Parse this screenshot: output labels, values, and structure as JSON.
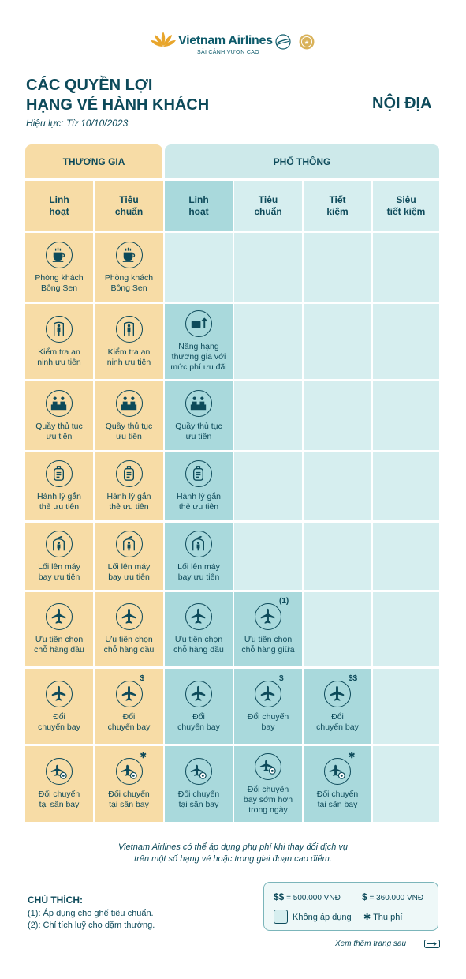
{
  "header": {
    "brand": "Vietnam Airlines",
    "slogan": "SẢI CÁNH VƯƠN CAO",
    "title_line1": "CÁC QUYỀN LỢI",
    "title_line2": "HẠNG VÉ HÀNH KHÁCH",
    "region": "NỘI ĐỊA",
    "validity": "Hiệu lực: Từ 10/10/2023"
  },
  "classes": {
    "business": "THƯƠNG GIA",
    "economy": "PHỔ THÔNG"
  },
  "fares": [
    {
      "line1": "Linh",
      "line2": "hoạt"
    },
    {
      "line1": "Tiêu",
      "line2": "chuẩn"
    },
    {
      "line1": "Linh",
      "line2": "hoạt"
    },
    {
      "line1": "Tiêu",
      "line2": "chuẩn"
    },
    {
      "line1": "Tiết",
      "line2": "kiệm"
    },
    {
      "line1": "Siêu",
      "line2": "tiết kiệm"
    }
  ],
  "rows": [
    {
      "icon": "coffee-cup-icon",
      "cells": [
        {
          "l1": "Phòng khách",
          "l2": "Bông Sen"
        },
        {
          "l1": "Phòng khách",
          "l2": "Bông Sen"
        },
        null,
        null,
        null,
        null
      ]
    },
    {
      "icon": "security-gate-icon",
      "cells": [
        {
          "l1": "Kiểm tra an",
          "l2": "ninh ưu tiên"
        },
        {
          "l1": "Kiểm tra an",
          "l2": "ninh ưu tiên"
        },
        {
          "l1": "Nâng hạng",
          "l2": "thương gia với",
          "l3": "mức phí ưu đãi",
          "icon": "upgrade-icon"
        },
        null,
        null,
        null
      ]
    },
    {
      "icon": "check-in-counter-icon",
      "cells": [
        {
          "l1": "Quầy thủ tục",
          "l2": "ưu tiên"
        },
        {
          "l1": "Quầy thủ tục",
          "l2": "ưu tiên"
        },
        {
          "l1": "Quầy thủ tục",
          "l2": "ưu tiên"
        },
        null,
        null,
        null
      ]
    },
    {
      "icon": "baggage-tag-icon",
      "cells": [
        {
          "l1": "Hành lý gắn",
          "l2": "thẻ ưu tiên"
        },
        {
          "l1": "Hành lý gắn",
          "l2": "thẻ ưu tiên"
        },
        {
          "l1": "Hành lý gắn",
          "l2": "thẻ ưu tiên"
        },
        null,
        null,
        null
      ]
    },
    {
      "icon": "boarding-gate-icon",
      "cells": [
        {
          "l1": "Lối lên máy",
          "l2": "bay ưu tiên"
        },
        {
          "l1": "Lối lên máy",
          "l2": "bay ưu tiên"
        },
        {
          "l1": "Lối lên máy",
          "l2": "bay ưu tiên"
        },
        null,
        null,
        null
      ]
    },
    {
      "icon": "plane-seat-icon",
      "cells": [
        {
          "l1": "Ưu tiên chọn",
          "l2": "chỗ hàng đầu"
        },
        {
          "l1": "Ưu tiên chọn",
          "l2": "chỗ hàng đầu"
        },
        {
          "l1": "Ưu tiên chọn",
          "l2": "chỗ hàng đầu"
        },
        {
          "l1": "Ưu tiên chọn",
          "l2": "chỗ hàng giữa",
          "sup": "(1)"
        },
        null,
        null
      ]
    },
    {
      "icon": "change-flight-icon",
      "cells": [
        {
          "l1": "Đổi",
          "l2": "chuyến bay"
        },
        {
          "l1": "Đổi",
          "l2": "chuyến bay",
          "sup": "$"
        },
        {
          "l1": "Đổi",
          "l2": "chuyến bay"
        },
        {
          "l1": "Đổi chuyến",
          "l2": "bay",
          "sup": "$"
        },
        {
          "l1": "Đổi",
          "l2": "chuyến bay",
          "sup": "$$"
        },
        null
      ]
    },
    {
      "icon": "airport-change-icon",
      "cells": [
        {
          "l1": "Đổi chuyến",
          "l2": "tại sân bay"
        },
        {
          "l1": "Đổi chuyến",
          "l2": "tại sân bay",
          "sup": "✱"
        },
        {
          "l1": "Đổi chuyến",
          "l2": "tại sân bay"
        },
        {
          "l1": "Đổi chuyến",
          "l2": "bay sớm hơn",
          "l3": "trong ngày"
        },
        {
          "l1": "Đổi chuyến",
          "l2": "tại sân bay",
          "sup": "✱"
        },
        null
      ]
    }
  ],
  "note": {
    "line1": "Vietnam Airlines có thể áp dụng phụ phí khi thay đổi dịch vụ",
    "line2": "trên một số hạng vé hoặc trong giai đoạn cao điểm."
  },
  "legend": {
    "title": "CHÚ THÍCH:",
    "item1": "(1): Áp dụng cho ghế tiêu chuẩn.",
    "item2": "(2): Chỉ tích luỹ cho dặm thưởng."
  },
  "key": {
    "dd_symbol": "$$",
    "dd_value": "= 500.000 VNĐ",
    "d_symbol": "$",
    "d_value": "= 360.000 VNĐ",
    "not_applicable": "Không áp dụng",
    "fee_symbol": "✱",
    "fee_label": "Thu phí"
  },
  "footer": {
    "see_more": "Xem thêm trang sau"
  },
  "colors": {
    "business": "#f7dca6",
    "business_light": "#fbeac7",
    "economy": "#a9d9dc",
    "economy_light": "#d6eeef",
    "ink": "#0d4a5a"
  }
}
